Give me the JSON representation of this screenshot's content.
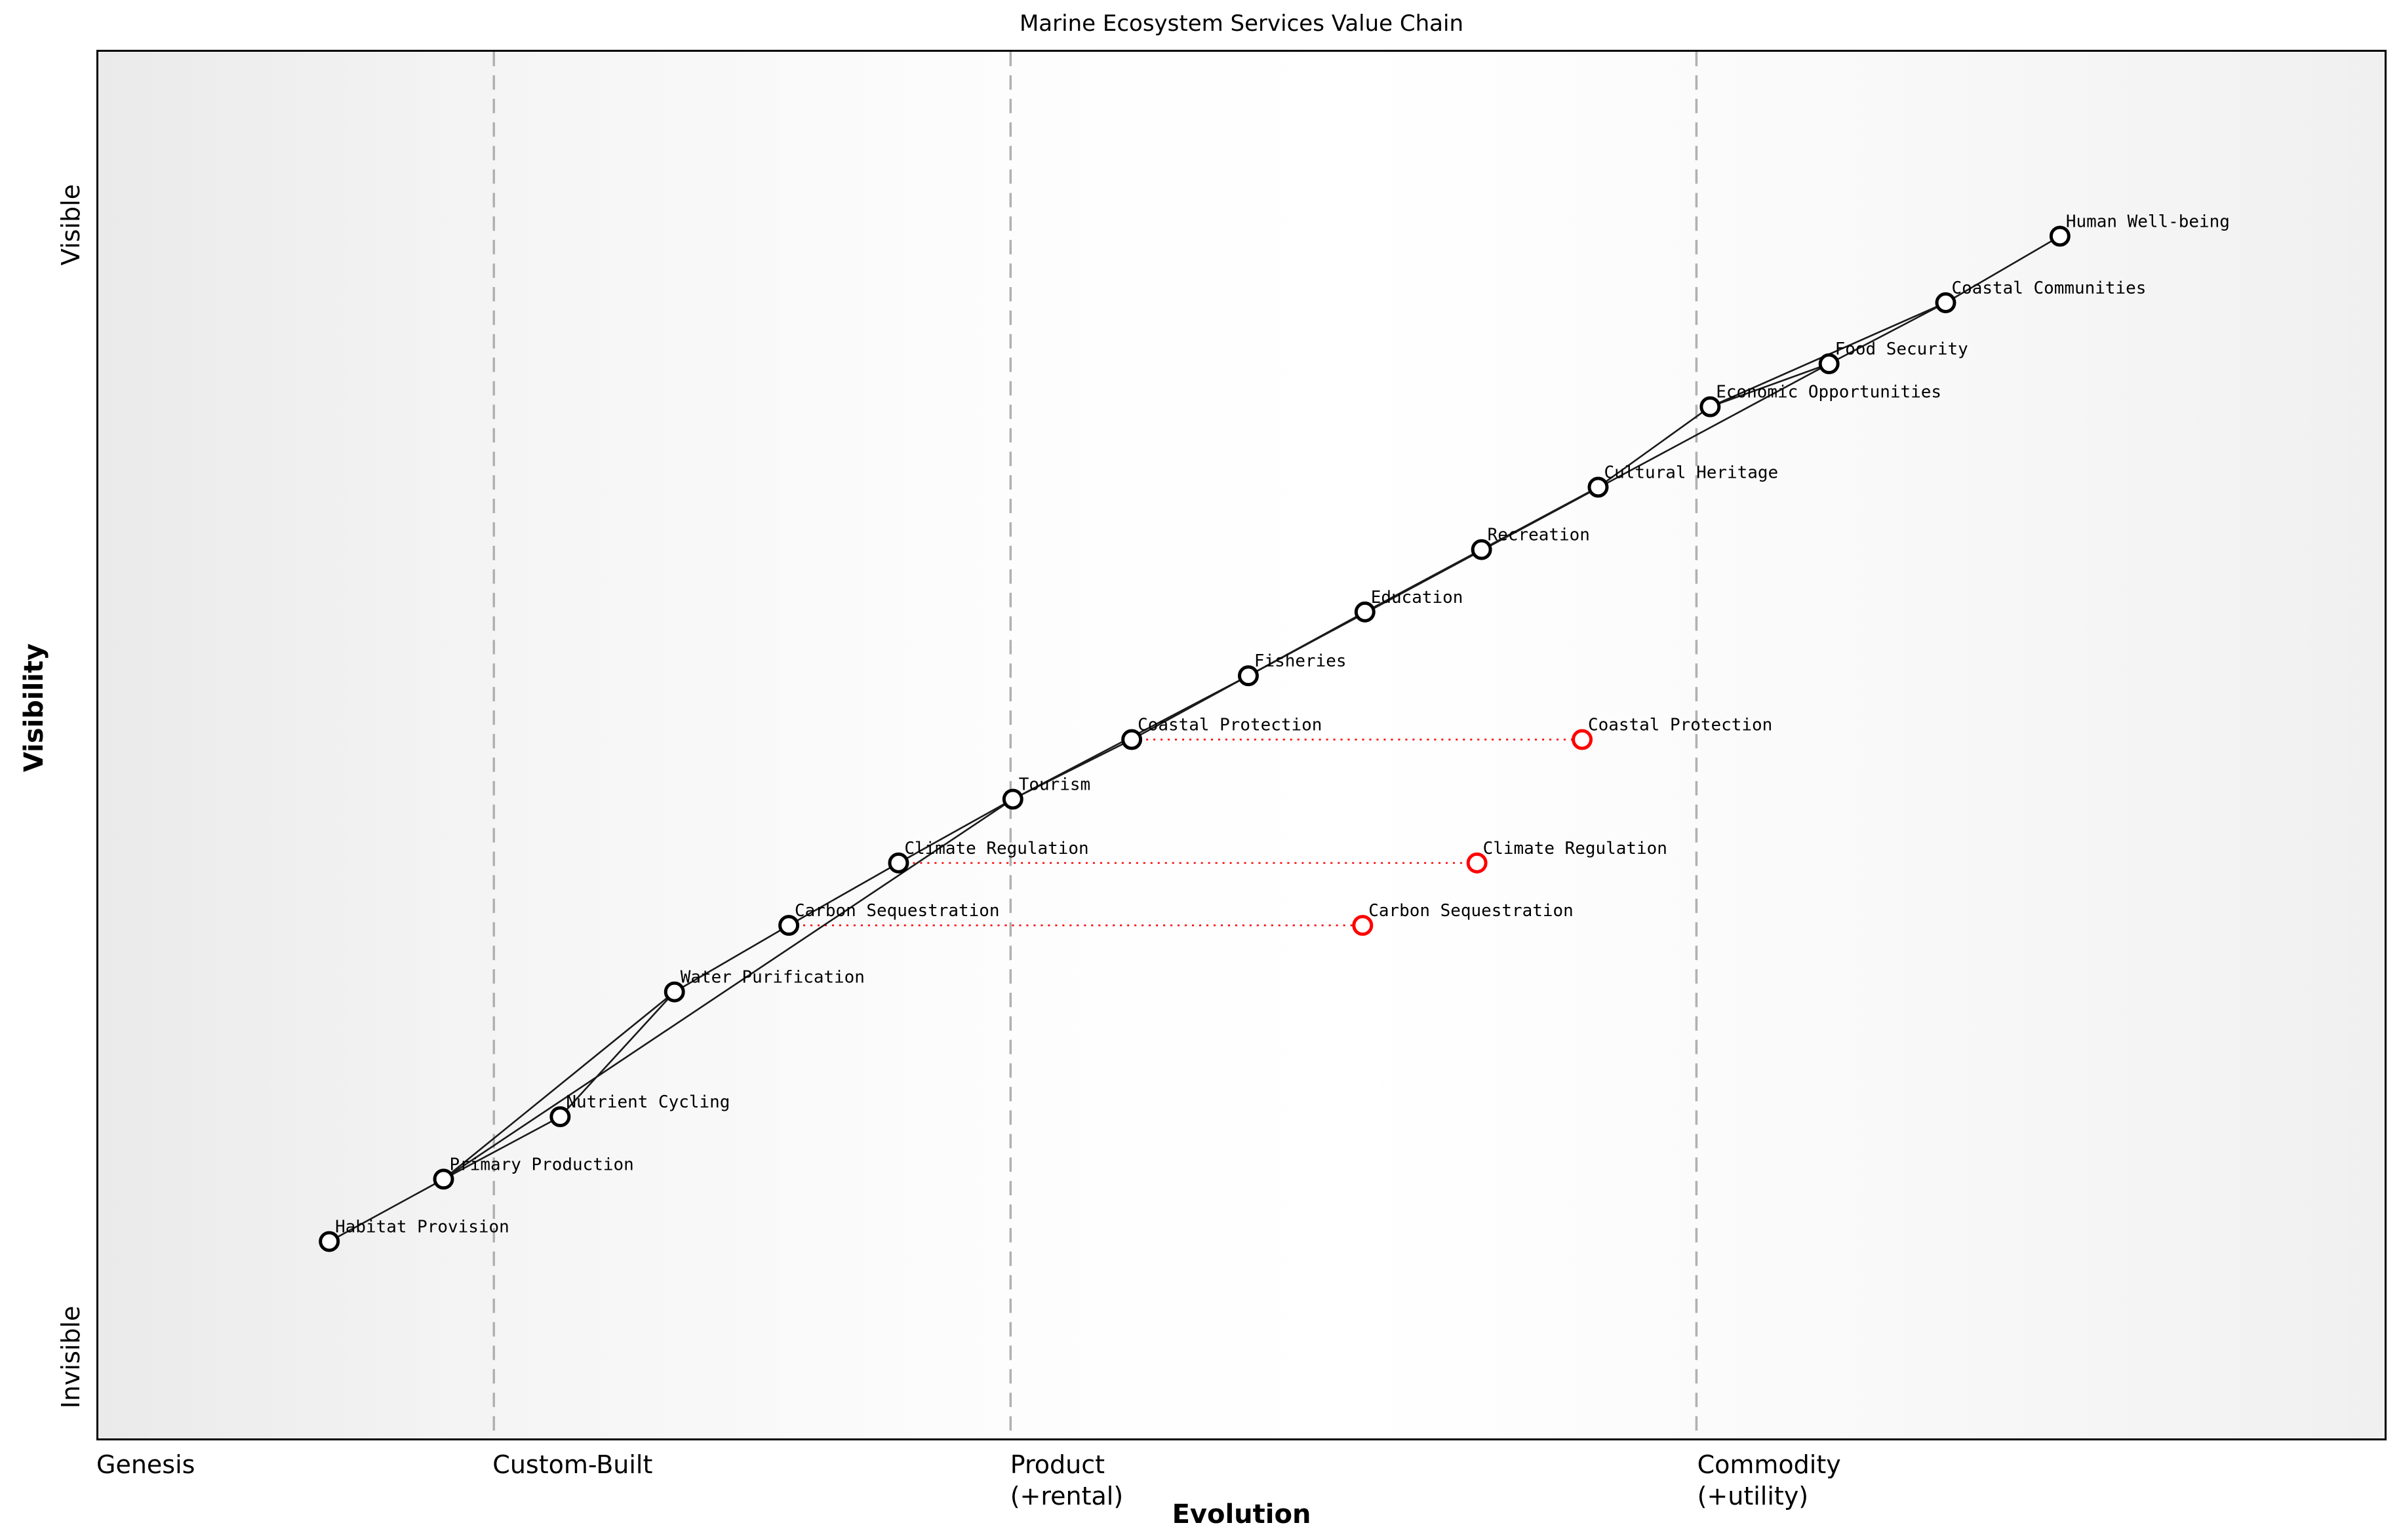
{
  "title": "Marine Ecosystem Services Value Chain",
  "x_axis": {
    "label": "Evolution",
    "ticks": [
      {
        "label": "Genesis",
        "sub": "",
        "fx": 0.0
      },
      {
        "label": "Custom-Built",
        "sub": "",
        "fx": 0.173
      },
      {
        "label": "Product",
        "sub": "(+rental)",
        "fx": 0.399
      },
      {
        "label": "Commodity",
        "sub": "(+utility)",
        "fx": 0.699
      }
    ]
  },
  "y_axis": {
    "label": "Visibility",
    "ticks": [
      {
        "label": "Visible",
        "fy": 0.126
      },
      {
        "label": "Invisible",
        "fy": 0.94
      }
    ]
  },
  "colors": {
    "node_stroke": "#000000",
    "node_fill": "#ffffff",
    "edge": "#1a1a1a",
    "evolved": "#ff0000",
    "gridline": "#b0b0b0",
    "label": "#000000"
  },
  "chart_data": {
    "type": "scatter",
    "title": "Marine Ecosystem Services Value Chain",
    "xlabel": "Evolution",
    "ylabel": "Visibility",
    "x_stages": [
      "Genesis",
      "Custom-Built",
      "Product (+rental)",
      "Commodity (+utility)"
    ],
    "y_range_labels": [
      "Invisible",
      "Visible"
    ],
    "gridlines_fx": [
      0.173,
      0.399,
      0.699
    ],
    "legend": "none",
    "nodes": [
      {
        "id": "habitat_provision",
        "label": "Habitat Provision",
        "evolution": 0.101,
        "visibility_from_top": 0.858,
        "type": "component"
      },
      {
        "id": "primary_production",
        "label": "Primary Production",
        "evolution": 0.151,
        "visibility_from_top": 0.813,
        "type": "component"
      },
      {
        "id": "nutrient_cycling",
        "label": "Nutrient Cycling",
        "evolution": 0.202,
        "visibility_from_top": 0.768,
        "type": "component"
      },
      {
        "id": "water_purification",
        "label": "Water Purification",
        "evolution": 0.252,
        "visibility_from_top": 0.678,
        "type": "component"
      },
      {
        "id": "carbon_sequestration",
        "label": "Carbon Sequestration",
        "evolution": 0.302,
        "visibility_from_top": 0.63,
        "type": "component"
      },
      {
        "id": "climate_regulation",
        "label": "Climate Regulation",
        "evolution": 0.35,
        "visibility_from_top": 0.585,
        "type": "component"
      },
      {
        "id": "tourism",
        "label": "Tourism",
        "evolution": 0.4,
        "visibility_from_top": 0.539,
        "type": "component"
      },
      {
        "id": "coastal_protection",
        "label": "Coastal Protection",
        "evolution": 0.452,
        "visibility_from_top": 0.496,
        "type": "component"
      },
      {
        "id": "fisheries",
        "label": "Fisheries",
        "evolution": 0.503,
        "visibility_from_top": 0.45,
        "type": "component"
      },
      {
        "id": "education",
        "label": "Education",
        "evolution": 0.554,
        "visibility_from_top": 0.404,
        "type": "component"
      },
      {
        "id": "recreation",
        "label": "Recreation",
        "evolution": 0.605,
        "visibility_from_top": 0.359,
        "type": "component"
      },
      {
        "id": "cultural_heritage",
        "label": "Cultural Heritage",
        "evolution": 0.656,
        "visibility_from_top": 0.314,
        "type": "component"
      },
      {
        "id": "economic_opportunities",
        "label": "Economic Opportunities",
        "evolution": 0.705,
        "visibility_from_top": 0.256,
        "type": "component"
      },
      {
        "id": "food_security",
        "label": "Food Security",
        "evolution": 0.757,
        "visibility_from_top": 0.225,
        "type": "component"
      },
      {
        "id": "coastal_communities",
        "label": "Coastal Communities",
        "evolution": 0.808,
        "visibility_from_top": 0.181,
        "type": "component"
      },
      {
        "id": "human_well_being",
        "label": "Human Well-being",
        "evolution": 0.858,
        "visibility_from_top": 0.133,
        "type": "component"
      },
      {
        "id": "carbon_sequestration_evolved",
        "label": "Carbon Sequestration",
        "evolution": 0.553,
        "visibility_from_top": 0.63,
        "type": "evolved"
      },
      {
        "id": "climate_regulation_evolved",
        "label": "Climate Regulation",
        "evolution": 0.603,
        "visibility_from_top": 0.585,
        "type": "evolved"
      },
      {
        "id": "coastal_protection_evolved",
        "label": "Coastal Protection",
        "evolution": 0.649,
        "visibility_from_top": 0.496,
        "type": "evolved"
      }
    ],
    "edges": [
      [
        "habitat_provision",
        "primary_production"
      ],
      [
        "primary_production",
        "nutrient_cycling"
      ],
      [
        "primary_production",
        "water_purification"
      ],
      [
        "primary_production",
        "tourism"
      ],
      [
        "nutrient_cycling",
        "water_purification"
      ],
      [
        "water_purification",
        "carbon_sequestration"
      ],
      [
        "carbon_sequestration",
        "climate_regulation"
      ],
      [
        "climate_regulation",
        "tourism"
      ],
      [
        "tourism",
        "coastal_protection"
      ],
      [
        "tourism",
        "fisheries"
      ],
      [
        "coastal_protection",
        "fisheries"
      ],
      [
        "fisheries",
        "education"
      ],
      [
        "fisheries",
        "food_security"
      ],
      [
        "education",
        "recreation"
      ],
      [
        "recreation",
        "cultural_heritage"
      ],
      [
        "cultural_heritage",
        "economic_opportunities"
      ],
      [
        "economic_opportunities",
        "food_security"
      ],
      [
        "economic_opportunities",
        "coastal_communities"
      ],
      [
        "food_security",
        "coastal_communities"
      ],
      [
        "coastal_communities",
        "human_well_being"
      ]
    ],
    "evolution_links": [
      [
        "carbon_sequestration",
        "carbon_sequestration_evolved"
      ],
      [
        "climate_regulation",
        "climate_regulation_evolved"
      ],
      [
        "coastal_protection",
        "coastal_protection_evolved"
      ]
    ]
  }
}
